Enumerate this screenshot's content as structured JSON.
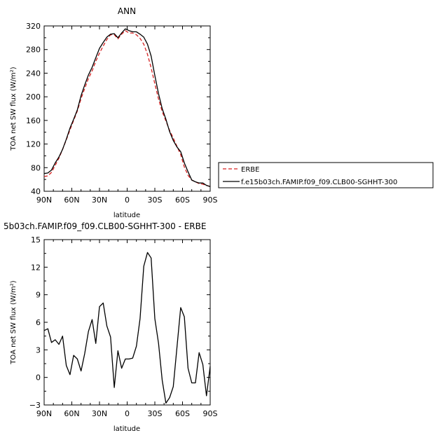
{
  "chart_data": [
    {
      "type": "line",
      "title": "ANN",
      "xlabel": "latitude",
      "ylabel": "TOA net SW flux (W/m²)",
      "x_ticks": [
        "90N",
        "60N",
        "30N",
        "0",
        "30S",
        "60S",
        "90S"
      ],
      "y_ticks": [
        "40",
        "80",
        "120",
        "160",
        "200",
        "240",
        "280",
        "320"
      ],
      "xlim": [
        90,
        -90
      ],
      "ylim": [
        40,
        320
      ],
      "grid": false,
      "legend_position": "right",
      "series": [
        {
          "name": "ERBE",
          "color": "#d62020",
          "dash": "dashed",
          "x": [
            90,
            86,
            82,
            78,
            74,
            70,
            66,
            62,
            58,
            54,
            50,
            46,
            42,
            38,
            34,
            30,
            26,
            22,
            18,
            14,
            10,
            6,
            2,
            -2,
            -6,
            -10,
            -14,
            -18,
            -22,
            -26,
            -30,
            -34,
            -38,
            -42,
            -46,
            -50,
            -54,
            -58,
            -62,
            -66,
            -70,
            -74,
            -78,
            -82,
            -86,
            -90
          ],
          "y": [
            65,
            66,
            72,
            84,
            96,
            111,
            127,
            144,
            160,
            176,
            197,
            214,
            231,
            244,
            260,
            274,
            286,
            297,
            305,
            305,
            298,
            306,
            312,
            308,
            308,
            305,
            299,
            289,
            272,
            249,
            222,
            196,
            175,
            159,
            143,
            130,
            116,
            102,
            81,
            67,
            59,
            56,
            53,
            52,
            50,
            48
          ]
        },
        {
          "name": "f.e15b03ch.FAMIP.f09_f09.CLB00-SGHHT-300",
          "color": "#000000",
          "dash": "solid",
          "x": [
            90,
            86,
            82,
            78,
            74,
            70,
            66,
            62,
            58,
            54,
            50,
            46,
            42,
            38,
            34,
            30,
            26,
            22,
            18,
            14,
            10,
            6,
            2,
            -2,
            -6,
            -10,
            -14,
            -18,
            -22,
            -26,
            -30,
            -34,
            -38,
            -42,
            -46,
            -50,
            -54,
            -58,
            -62,
            -66,
            -70,
            -74,
            -78,
            -82,
            -86,
            -90
          ],
          "y": [
            70,
            71,
            76,
            88,
            98,
            111,
            128,
            147,
            162,
            178,
            202,
            220,
            237,
            250,
            266,
            282,
            292,
            301,
            306,
            307,
            300,
            308,
            315,
            312,
            310,
            310,
            306,
            301,
            289,
            269,
            236,
            205,
            180,
            162,
            141,
            126,
            115,
            107,
            88,
            73,
            59,
            56,
            54,
            54,
            50,
            48
          ]
        }
      ]
    },
    {
      "type": "line",
      "title": "5b03ch.FAMIP.f09_f09.CLB00-SGHHT-300 - ERBE",
      "xlabel": "latitude",
      "ylabel": "TOA net SW flux (W/m²)",
      "x_ticks": [
        "90N",
        "60N",
        "30N",
        "0",
        "30S",
        "60S",
        "90S"
      ],
      "y_ticks": [
        "-3",
        "0",
        "3",
        "6",
        "9",
        "12",
        "15"
      ],
      "xlim": [
        90,
        -90
      ],
      "ylim": [
        -3,
        15
      ],
      "grid": false,
      "series": [
        {
          "color": "#000000",
          "x": [
            90,
            86,
            82,
            78,
            74,
            70,
            66,
            62,
            58,
            54,
            50,
            46,
            42,
            38,
            34,
            30,
            26,
            22,
            18,
            14,
            10,
            6,
            2,
            -2,
            -6,
            -10,
            -14,
            -18,
            -22,
            -26,
            -30,
            -34,
            -38,
            -42,
            -46,
            -50,
            -54,
            -58,
            -62,
            -66,
            -70,
            -74,
            -78,
            -82,
            -86,
            -90
          ],
          "y": [
            5.1,
            5.3,
            3.8,
            4.1,
            3.6,
            4.5,
            1.3,
            0.3,
            2.4,
            2.0,
            0.7,
            2.6,
            5.0,
            6.3,
            3.7,
            7.7,
            8.1,
            5.6,
            4.4,
            -1.1,
            2.9,
            1.0,
            2.0,
            2.0,
            2.1,
            3.4,
            6.4,
            12.1,
            13.6,
            13.0,
            6.4,
            3.7,
            -0.3,
            -2.8,
            -2.2,
            -1.0,
            3.3,
            7.6,
            6.6,
            1.0,
            -0.6,
            -0.6,
            2.7,
            1.4,
            -2.0,
            1.2
          ]
        }
      ]
    }
  ]
}
